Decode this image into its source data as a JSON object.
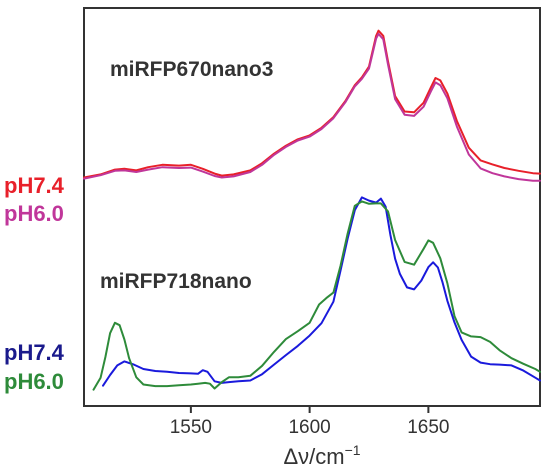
{
  "chart_data": {
    "type": "line",
    "xlabel": "Δν/cm",
    "xlabel_superscript": "−1",
    "xlim": [
      1505,
      1697
    ],
    "ylim": [
      0,
      1
    ],
    "x_ticks": [
      1550,
      1600,
      1650
    ],
    "y_ticks_shown": false,
    "grid": false,
    "groups": [
      {
        "label": "miRFP670nano3",
        "series": [
          {
            "name": "pH7.4",
            "color": "#e8202a",
            "x": [
              1505,
              1512,
              1518,
              1522,
              1527,
              1532,
              1538,
              1545,
              1550,
              1555,
              1560,
              1563,
              1568,
              1575,
              1580,
              1585,
              1590,
              1595,
              1600,
              1605,
              1610,
              1615,
              1619,
              1622,
              1625,
              1628,
              1629,
              1631,
              1633,
              1636,
              1640,
              1644,
              1648,
              1651,
              1653,
              1655,
              1658,
              1662,
              1667,
              1672,
              1677,
              1682,
              1688,
              1694,
              1697
            ],
            "y": [
              0.574,
              0.582,
              0.594,
              0.596,
              0.592,
              0.6,
              0.606,
              0.604,
              0.606,
              0.596,
              0.584,
              0.579,
              0.582,
              0.592,
              0.61,
              0.634,
              0.654,
              0.67,
              0.68,
              0.699,
              0.726,
              0.766,
              0.806,
              0.826,
              0.853,
              0.93,
              0.943,
              0.93,
              0.866,
              0.779,
              0.74,
              0.738,
              0.762,
              0.8,
              0.824,
              0.818,
              0.785,
              0.716,
              0.649,
              0.617,
              0.607,
              0.598,
              0.591,
              0.585,
              0.584
            ],
            "legend_text": "pH7.4"
          },
          {
            "name": "pH6.0",
            "color": "#c0369a",
            "x": [
              1505,
              1512,
              1518,
              1522,
              1527,
              1532,
              1538,
              1545,
              1550,
              1555,
              1560,
              1563,
              1568,
              1575,
              1580,
              1585,
              1590,
              1595,
              1600,
              1605,
              1610,
              1615,
              1619,
              1622,
              1625,
              1628,
              1629,
              1631,
              1633,
              1636,
              1640,
              1644,
              1648,
              1651,
              1653,
              1655,
              1658,
              1662,
              1667,
              1672,
              1677,
              1682,
              1688,
              1694,
              1697
            ],
            "y": [
              0.571,
              0.58,
              0.591,
              0.592,
              0.588,
              0.594,
              0.6,
              0.598,
              0.599,
              0.589,
              0.578,
              0.574,
              0.577,
              0.588,
              0.606,
              0.631,
              0.651,
              0.667,
              0.677,
              0.696,
              0.723,
              0.763,
              0.803,
              0.822,
              0.848,
              0.923,
              0.935,
              0.921,
              0.858,
              0.771,
              0.732,
              0.729,
              0.752,
              0.79,
              0.813,
              0.806,
              0.773,
              0.702,
              0.632,
              0.597,
              0.585,
              0.577,
              0.57,
              0.566,
              0.566
            ],
            "legend_text": "pH6.0"
          }
        ]
      },
      {
        "label": "miRFP718nano",
        "series": [
          {
            "name": "pH7.4",
            "color": "#1a1adc",
            "x": [
              1513,
              1516,
              1519,
              1522,
              1526,
              1530,
              1535,
              1540,
              1545,
              1550,
              1553,
              1555,
              1557,
              1560,
              1563,
              1566,
              1570,
              1575,
              1580,
              1585,
              1590,
              1595,
              1600,
              1605,
              1610,
              1613,
              1616,
              1619,
              1622,
              1625,
              1628,
              1630,
              1632,
              1634,
              1636,
              1638,
              1641,
              1644,
              1647,
              1650,
              1652,
              1654,
              1656,
              1658,
              1661,
              1664,
              1668,
              1672,
              1676,
              1680,
              1685,
              1690,
              1695,
              1697
            ],
            "y": [
              0.051,
              0.078,
              0.102,
              0.112,
              0.104,
              0.093,
              0.088,
              0.086,
              0.083,
              0.082,
              0.081,
              0.09,
              0.086,
              0.062,
              0.058,
              0.06,
              0.062,
              0.064,
              0.08,
              0.104,
              0.128,
              0.151,
              0.177,
              0.208,
              0.262,
              0.34,
              0.42,
              0.492,
              0.524,
              0.516,
              0.511,
              0.521,
              0.501,
              0.43,
              0.37,
              0.332,
              0.298,
              0.293,
              0.315,
              0.349,
              0.361,
              0.348,
              0.31,
              0.264,
              0.21,
              0.166,
              0.124,
              0.109,
              0.105,
              0.104,
              0.102,
              0.089,
              0.071,
              0.064
            ],
            "legend_text": "pH7.4"
          },
          {
            "name": "pH6.0",
            "color": "#2e8b3a",
            "x": [
              1509,
              1512,
              1514,
              1516,
              1518,
              1520,
              1522,
              1524,
              1527,
              1530,
              1535,
              1540,
              1545,
              1550,
              1553,
              1556,
              1558,
              1560,
              1563,
              1566,
              1570,
              1575,
              1580,
              1585,
              1590,
              1595,
              1600,
              1604,
              1607,
              1610,
              1613,
              1616,
              1619,
              1622,
              1625,
              1628,
              1630,
              1633,
              1636,
              1640,
              1644,
              1648,
              1650,
              1652,
              1655,
              1658,
              1661,
              1664,
              1668,
              1672,
              1676,
              1680,
              1685,
              1690,
              1695,
              1697
            ],
            "y": [
              0.041,
              0.071,
              0.123,
              0.183,
              0.209,
              0.203,
              0.167,
              0.12,
              0.072,
              0.054,
              0.05,
              0.05,
              0.052,
              0.054,
              0.056,
              0.058,
              0.056,
              0.044,
              0.06,
              0.072,
              0.072,
              0.076,
              0.101,
              0.136,
              0.168,
              0.188,
              0.209,
              0.255,
              0.271,
              0.285,
              0.352,
              0.433,
              0.503,
              0.514,
              0.508,
              0.509,
              0.509,
              0.489,
              0.417,
              0.362,
              0.355,
              0.395,
              0.416,
              0.41,
              0.371,
              0.308,
              0.226,
              0.185,
              0.175,
              0.173,
              0.161,
              0.14,
              0.12,
              0.106,
              0.093,
              0.086
            ],
            "legend_text": "pH6.0"
          }
        ]
      }
    ]
  }
}
